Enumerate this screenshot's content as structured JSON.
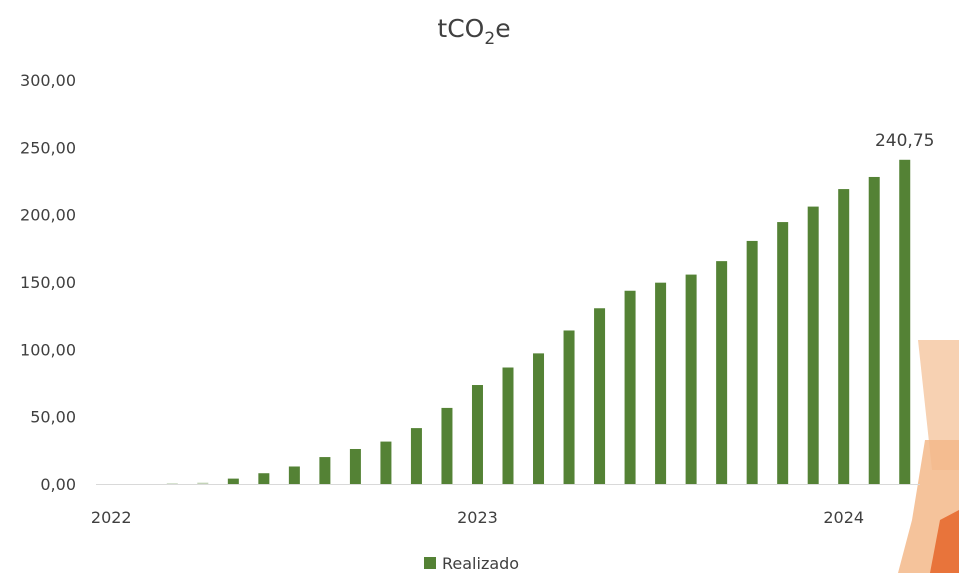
{
  "chart_data": {
    "type": "bar",
    "title": "tCO2e",
    "title_main": "tCO",
    "title_sub": "2",
    "title_tail": "e",
    "xlabel": "",
    "ylabel": "",
    "ylim": [
      0,
      300
    ],
    "y_ticks": [
      "0,00",
      "50,00",
      "100,00",
      "150,00",
      "200,00",
      "250,00",
      "300,00"
    ],
    "x_tick_labels": [
      {
        "label": "2022",
        "index": 0
      },
      {
        "label": "2023",
        "index": 12
      },
      {
        "label": "2024",
        "index": 24
      }
    ],
    "series": [
      {
        "name": "Realizado",
        "color": "#548235",
        "values": [
          0.0,
          0.0,
          0.5,
          1.0,
          4.0,
          8.0,
          13.0,
          20.0,
          26.0,
          31.5,
          41.5,
          56.5,
          73.5,
          86.5,
          97.0,
          114.0,
          130.5,
          143.5,
          149.5,
          155.5,
          165.5,
          180.5,
          194.5,
          206.0,
          219.0,
          228.0,
          240.75
        ]
      }
    ],
    "data_labels": [
      {
        "index": 26,
        "text": "240,75"
      }
    ],
    "grid": false,
    "legend_position": "bottom"
  }
}
